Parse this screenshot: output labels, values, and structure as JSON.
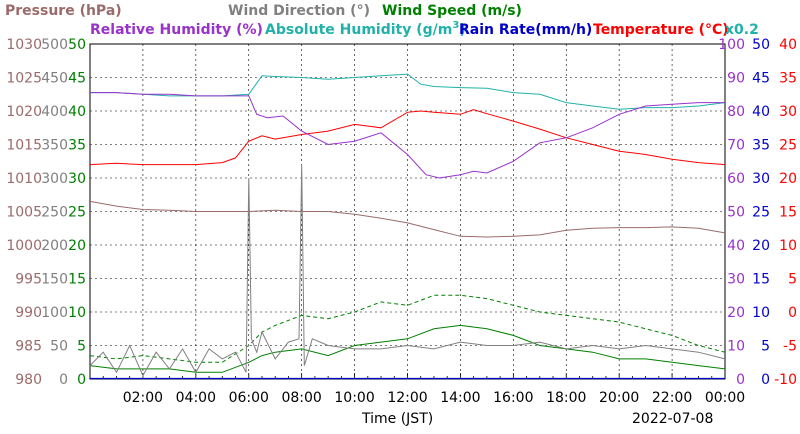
{
  "chart_data": {
    "type": "line",
    "date": "2022-07-08",
    "xlabel": "Time (JST)",
    "x_range_hours": [
      0,
      24
    ],
    "x_ticks": [
      "02:00",
      "04:00",
      "06:00",
      "08:00",
      "10:00",
      "12:00",
      "14:00",
      "16:00",
      "18:00",
      "20:00",
      "22:00",
      "00:00"
    ],
    "grid": true,
    "axes": [
      {
        "name": "Pressure",
        "label": "Pressure (hPa)",
        "color": "#9b6b6b",
        "range": [
          980,
          1030
        ],
        "ticks": [
          "980",
          "985",
          "990",
          "995",
          "1000",
          "1005",
          "1010",
          "1015",
          "1020",
          "1025",
          "1030"
        ]
      },
      {
        "name": "Wind Direction",
        "label": "Wind Direction (°)",
        "color": "#808080",
        "range": [
          0,
          500
        ],
        "ticks": [
          "0",
          "50",
          "100",
          "150",
          "200",
          "250",
          "300",
          "350",
          "400",
          "450",
          "500"
        ]
      },
      {
        "name": "Wind Speed",
        "label": "Wind Speed (m/s)",
        "color": "#008000",
        "range": [
          0,
          50
        ],
        "ticks": [
          "0",
          "5",
          "10",
          "15",
          "20",
          "25",
          "30",
          "35",
          "40",
          "45",
          "50"
        ]
      },
      {
        "name": "Relative Humidity",
        "label": "Relative Humidity (%)",
        "color": "#9932cc",
        "range": [
          0,
          100
        ],
        "ticks": [
          "0",
          "10",
          "20",
          "30",
          "40",
          "50",
          "60",
          "70",
          "80",
          "90",
          "100"
        ]
      },
      {
        "name": "Rain Rate",
        "label": "Rain Rate(mm/h)",
        "color": "#0000cc",
        "range": [
          0,
          50
        ],
        "ticks": [
          "0",
          "5",
          "10",
          "15",
          "20",
          "25",
          "30",
          "35",
          "40",
          "45",
          "50"
        ]
      },
      {
        "name": "Temperature",
        "label": "Temperature (°C)",
        "color": "#ff0000",
        "range": [
          -10,
          40
        ],
        "ticks": [
          "-10",
          "-5",
          "0",
          "5",
          "10",
          "15",
          "20",
          "25",
          "30",
          "35",
          "40"
        ]
      }
    ],
    "absolute_humidity_label": "Absolute Humidity (g/m",
    "absolute_humidity_label_sup": "3",
    "absolute_humidity_label_end": ")",
    "absolute_humidity_scale_note": "x0.2",
    "absolute_humidity_color": "#20b2aa",
    "series": [
      {
        "name": "Pressure",
        "axis": "Pressure",
        "color": "#9b6b6b",
        "x": [
          0,
          1,
          2,
          3,
          4,
          5,
          6,
          7,
          8,
          9,
          10,
          11,
          12,
          13,
          14,
          15,
          16,
          17,
          18,
          19,
          20,
          21,
          22,
          23,
          24
        ],
        "y": [
          1006.5,
          1005.8,
          1005.3,
          1005.2,
          1005.0,
          1005.0,
          1005.0,
          1005.2,
          1005.0,
          1005.0,
          1004.6,
          1004.0,
          1003.3,
          1002.3,
          1001.3,
          1001.2,
          1001.3,
          1001.5,
          1002.2,
          1002.5,
          1002.6,
          1002.6,
          1002.7,
          1002.5,
          1001.8
        ]
      },
      {
        "name": "Temperature",
        "axis": "Temperature",
        "color": "#ff0000",
        "x": [
          0,
          1,
          2,
          3,
          4,
          5,
          5.5,
          6,
          6.5,
          7,
          8,
          9,
          10,
          11,
          12,
          12.5,
          13,
          14,
          14.5,
          15,
          16,
          17,
          18,
          19,
          20,
          21,
          22,
          23,
          24
        ],
        "y": [
          22.0,
          22.2,
          22.0,
          22.0,
          22.0,
          22.3,
          23.0,
          25.5,
          26.3,
          25.8,
          26.5,
          27.0,
          28.0,
          27.5,
          29.8,
          30.0,
          29.8,
          29.5,
          30.2,
          29.6,
          28.5,
          27.3,
          26.0,
          25.0,
          24.0,
          23.5,
          22.8,
          22.3,
          22.0
        ]
      },
      {
        "name": "Absolute Humidity",
        "axis": "Relative Humidity",
        "color": "#20b2aa",
        "x": [
          0,
          1,
          2,
          3,
          4,
          5,
          6,
          6.5,
          7,
          8,
          9,
          10,
          11,
          12,
          12.5,
          13,
          14,
          15,
          16,
          17,
          18,
          19,
          20,
          21,
          22,
          23,
          24
        ],
        "y": [
          85.5,
          85.5,
          85.0,
          84.5,
          84.5,
          84.5,
          85.0,
          90.5,
          90.3,
          90.0,
          89.5,
          90.0,
          90.5,
          91.0,
          88.0,
          87.3,
          87.0,
          86.8,
          85.5,
          85.0,
          82.5,
          81.5,
          80.5,
          81.0,
          81.0,
          81.5,
          82.5
        ]
      },
      {
        "name": "Relative Humidity",
        "axis": "Relative Humidity",
        "color": "#9932cc",
        "x": [
          0,
          1,
          2,
          3,
          4,
          5,
          6,
          6.3,
          6.7,
          7.3,
          8,
          9,
          10,
          11,
          12,
          12.7,
          13.2,
          14,
          14.5,
          15,
          16,
          17,
          18,
          19,
          20,
          21,
          22,
          23,
          24
        ],
        "y": [
          85.5,
          85.5,
          85.0,
          85.0,
          84.5,
          84.5,
          84.5,
          79.0,
          78.0,
          78.5,
          74.0,
          70.0,
          71.0,
          73.5,
          67.0,
          61.0,
          60.0,
          61.0,
          62.0,
          61.5,
          65.0,
          70.5,
          72.0,
          75.0,
          79.0,
          81.5,
          82.0,
          82.5,
          82.5
        ]
      },
      {
        "name": "Wind Speed",
        "axis": "Wind Speed",
        "color": "#008000",
        "x": [
          0,
          1,
          2,
          3,
          4,
          5,
          6,
          6.5,
          7,
          8,
          9,
          10,
          11,
          12,
          13,
          14,
          15,
          16,
          17,
          18,
          19,
          20,
          21,
          22,
          23,
          24
        ],
        "y": [
          2.0,
          1.5,
          1.5,
          1.5,
          1.0,
          1.0,
          2.5,
          3.5,
          4.0,
          4.5,
          3.5,
          5.0,
          5.5,
          6.0,
          7.5,
          8.0,
          7.5,
          6.5,
          5.0,
          4.5,
          4.0,
          3.0,
          3.0,
          2.5,
          2.0,
          1.5
        ]
      },
      {
        "name": "Wind Speed Gust",
        "axis": "Wind Speed",
        "color": "#008000",
        "dashed": true,
        "x": [
          0,
          1,
          2,
          3,
          4,
          5,
          6,
          6.5,
          7,
          8,
          9,
          10,
          11,
          12,
          13,
          14,
          15,
          16,
          17,
          18,
          19,
          20,
          21,
          22,
          23,
          24
        ],
        "y": [
          3.5,
          3.0,
          3.5,
          3.0,
          2.5,
          2.5,
          5.0,
          7.0,
          8.0,
          9.5,
          9.0,
          10.0,
          11.5,
          11.0,
          12.5,
          12.5,
          12.0,
          11.0,
          10.0,
          9.5,
          9.0,
          8.5,
          7.5,
          6.5,
          5.0,
          4.0
        ]
      },
      {
        "name": "Wind Direction",
        "axis": "Wind Direction",
        "color": "#808080",
        "x": [
          0,
          0.5,
          1,
          1.5,
          2,
          2.5,
          3,
          3.5,
          4,
          4.5,
          5,
          5.5,
          5.9,
          6.0,
          6.1,
          6.3,
          6.5,
          7.0,
          7.5,
          7.9,
          8.0,
          8.1,
          8.4,
          9,
          10,
          11,
          12,
          13,
          14,
          15,
          16,
          17,
          18,
          19,
          20,
          21,
          22,
          23,
          24
        ],
        "y": [
          20,
          40,
          10,
          50,
          5,
          40,
          15,
          45,
          10,
          45,
          30,
          40,
          10,
          300,
          60,
          40,
          70,
          30,
          55,
          60,
          320,
          20,
          60,
          50,
          45,
          45,
          50,
          45,
          55,
          50,
          50,
          55,
          45,
          50,
          45,
          50,
          45,
          40,
          30
        ]
      }
    ]
  }
}
